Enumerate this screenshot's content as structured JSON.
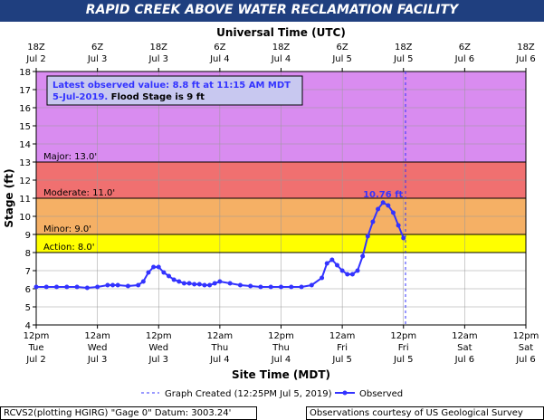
{
  "title": "RAPID CREEK ABOVE WATER RECLAMATION FACILITY",
  "top_axis_title": "Universal Time (UTC)",
  "top_ticks": [
    {
      "time": "18Z",
      "date": "Jul 2"
    },
    {
      "time": "6Z",
      "date": "Jul 3"
    },
    {
      "time": "18Z",
      "date": "Jul 3"
    },
    {
      "time": "6Z",
      "date": "Jul 4"
    },
    {
      "time": "18Z",
      "date": "Jul 4"
    },
    {
      "time": "6Z",
      "date": "Jul 5"
    },
    {
      "time": "18Z",
      "date": "Jul 5"
    },
    {
      "time": "6Z",
      "date": "Jul 6"
    },
    {
      "time": "18Z",
      "date": "Jul 6"
    }
  ],
  "annotation": {
    "line1": "Latest observed value: 8.8 ft at 11:15 AM MDT",
    "line2_date": "5-Jul-2019.",
    "line2_flood": "Flood Stage is 9 ft"
  },
  "peak_label": "10.76 ft",
  "graph_created_label": "Graph Created (12:25PM Jul 5, 2019)",
  "observed_label": "Observed",
  "footer_left": "RCVS2(plotting HGIRG) \"Gage 0\" Datum: 3003.24'",
  "footer_right": "Observations courtesy of US Geological Survey",
  "colors": {
    "title_bar": "#1f3f7f",
    "major": "#d98cf0",
    "moderate": "#f07070",
    "minor": "#f5b065",
    "action": "#ffff00",
    "series": "#3333ff"
  },
  "chart_data": {
    "type": "line",
    "xlabel": "Site Time (MDT)",
    "ylabel": "Stage (ft)",
    "ylim": [
      4,
      18
    ],
    "yticks": [
      4,
      5,
      6,
      7,
      8,
      9,
      10,
      11,
      12,
      13,
      14,
      15,
      16,
      17,
      18
    ],
    "xlim_hours_from_jul2_12pm": [
      0,
      96
    ],
    "xticks": [
      {
        "time": "12pm",
        "day": "Tue",
        "date": "Jul 2"
      },
      {
        "time": "12am",
        "day": "Wed",
        "date": "Jul 3"
      },
      {
        "time": "12pm",
        "day": "Wed",
        "date": "Jul 3"
      },
      {
        "time": "12am",
        "day": "Thu",
        "date": "Jul 4"
      },
      {
        "time": "12pm",
        "day": "Thu",
        "date": "Jul 4"
      },
      {
        "time": "12am",
        "day": "Fri",
        "date": "Jul 5"
      },
      {
        "time": "12pm",
        "day": "Fri",
        "date": "Jul 5"
      },
      {
        "time": "12am",
        "day": "Sat",
        "date": "Jul 6"
      },
      {
        "time": "12pm",
        "day": "Sat",
        "date": "Jul 6"
      }
    ],
    "grid": true,
    "flood_categories": [
      {
        "name": "Major",
        "label": "Major: 13.0'",
        "from": 13,
        "to": 18
      },
      {
        "name": "Moderate",
        "label": "Moderate: 11.0'",
        "from": 11,
        "to": 13
      },
      {
        "name": "Minor",
        "label": "Minor: 9.0'",
        "from": 9,
        "to": 11
      },
      {
        "name": "Action",
        "label": "Action: 8.0'",
        "from": 8,
        "to": 9
      }
    ],
    "graph_created_hour": 72.4,
    "series": [
      {
        "name": "Observed",
        "x": [
          0,
          2,
          4,
          6,
          8,
          10,
          12,
          14,
          15,
          16,
          18,
          20,
          21,
          22,
          23,
          24,
          25,
          26,
          27,
          28,
          29,
          30,
          31,
          32,
          33,
          34,
          35,
          36,
          38,
          40,
          42,
          44,
          46,
          48,
          50,
          52,
          54,
          56,
          57,
          58,
          59,
          60,
          61,
          62,
          63,
          64,
          65,
          66,
          67,
          68,
          69,
          70,
          71,
          72
        ],
        "values": [
          6.1,
          6.1,
          6.1,
          6.1,
          6.1,
          6.05,
          6.1,
          6.2,
          6.2,
          6.2,
          6.15,
          6.2,
          6.4,
          6.9,
          7.2,
          7.2,
          6.9,
          6.7,
          6.5,
          6.4,
          6.3,
          6.3,
          6.25,
          6.25,
          6.2,
          6.2,
          6.3,
          6.4,
          6.3,
          6.2,
          6.15,
          6.1,
          6.1,
          6.1,
          6.1,
          6.1,
          6.2,
          6.6,
          7.4,
          7.6,
          7.3,
          7.0,
          6.8,
          6.8,
          7.0,
          7.8,
          8.9,
          9.7,
          10.4,
          10.76,
          10.6,
          10.2,
          9.5,
          8.8
        ]
      }
    ]
  }
}
